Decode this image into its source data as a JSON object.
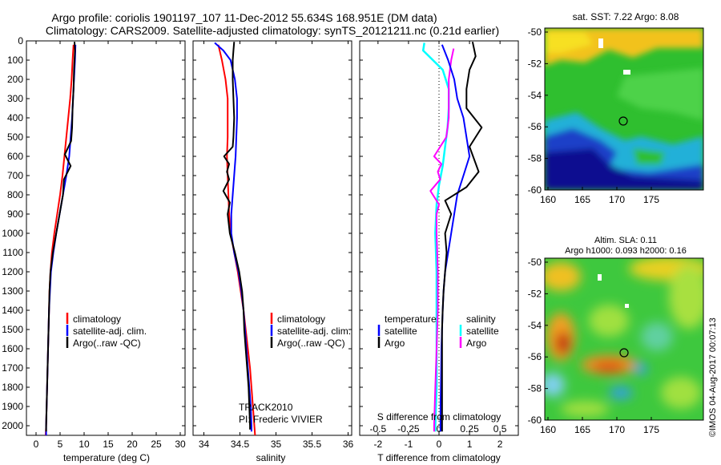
{
  "title": {
    "line1": "Argo profile: coriolis 1901197_107 11-Dec-2012 55.634S 168.951E (DM data)",
    "line2": "Climatology: CARS2009. Satellite-adjusted climatology: synTS_20121211.nc (0.21d earlier)"
  },
  "colors": {
    "climatology": "#ff0000",
    "satellite": "#0000ff",
    "argo": "#000000",
    "sal_satellite": "#00ffff",
    "sal_argo": "#ff00ff"
  },
  "depth_ticks": [
    0,
    100,
    200,
    300,
    400,
    500,
    600,
    700,
    800,
    900,
    1000,
    1100,
    1200,
    1300,
    1400,
    1500,
    1600,
    1700,
    1800,
    1900,
    2000
  ],
  "temp_panel": {
    "xlabel": "temperature (deg C)",
    "xticks": [
      "0",
      "5",
      "10",
      "15",
      "20",
      "25",
      "30"
    ],
    "legend": [
      "climatology",
      "satellite-adj. clim.",
      "Argo(..raw -QC)"
    ]
  },
  "sal_panel": {
    "xlabel": "salinity",
    "xticks": [
      "34",
      "34.5",
      "35",
      "35.5",
      "36"
    ],
    "legend": [
      "climatology",
      "satellite-adj. clim.",
      "Argo(..raw -QC)"
    ],
    "note1": "TRACK2010",
    "note2": "PI: Frederic VIVIER"
  },
  "diff_panel": {
    "xlabel": "T difference from climatology",
    "top_label": "S difference from climatology",
    "xticks": [
      "-2",
      "-1",
      "0",
      "1",
      "2"
    ],
    "sticks": [
      "-0.5",
      "-0.25",
      "0",
      "0.25",
      "0.5"
    ],
    "legend": {
      "temp_header": "temperature",
      "sal_header": "salinity",
      "t_sat": "satellite",
      "t_argo": "Argo",
      "s_sat": "satellite",
      "s_argo": "Argo"
    }
  },
  "map_top": {
    "title": "sat. SST: 7.22 Argo: 8.08",
    "yticks": [
      "-50",
      "-52",
      "-54",
      "-56",
      "-58",
      "-60"
    ],
    "xticks": [
      "160",
      "165",
      "170",
      "175"
    ]
  },
  "map_bottom": {
    "title1": "Altim. SLA: 0.11",
    "title2": "Argo h1000: 0.093 h2000: 0.16",
    "yticks": [
      "-50",
      "-52",
      "-54",
      "-56",
      "-58",
      "-60"
    ],
    "xticks": [
      "160",
      "165",
      "170",
      "175"
    ]
  },
  "watermark": "©IMOS 04-Aug-2017 00:07:13",
  "chart_data": {
    "type": "line",
    "y_axis": "depth",
    "ylim": [
      2050,
      0
    ],
    "temperature": {
      "xlim": [
        -2,
        31
      ],
      "climatology": [
        [
          7.8,
          20
        ],
        [
          7.6,
          100
        ],
        [
          7.4,
          200
        ],
        [
          7.1,
          300
        ],
        [
          6.7,
          400
        ],
        [
          6.3,
          500
        ],
        [
          5.9,
          600
        ],
        [
          5.5,
          700
        ],
        [
          5.0,
          800
        ],
        [
          4.4,
          900
        ],
        [
          3.8,
          1000
        ],
        [
          3.3,
          1100
        ],
        [
          3.0,
          1200
        ],
        [
          2.8,
          1300
        ],
        [
          2.7,
          1400
        ],
        [
          2.6,
          1500
        ],
        [
          2.5,
          1600
        ],
        [
          2.4,
          1700
        ],
        [
          2.3,
          1800
        ],
        [
          2.2,
          1900
        ],
        [
          2.1,
          2000
        ],
        [
          2.0,
          2050
        ]
      ],
      "satellite": [
        [
          8.2,
          20
        ],
        [
          8.1,
          100
        ],
        [
          7.9,
          200
        ],
        [
          7.7,
          300
        ],
        [
          7.5,
          400
        ],
        [
          7.2,
          500
        ],
        [
          6.9,
          600
        ],
        [
          6.3,
          700
        ],
        [
          5.6,
          800
        ],
        [
          4.9,
          900
        ],
        [
          4.2,
          1000
        ],
        [
          3.6,
          1100
        ],
        [
          3.1,
          1200
        ],
        [
          2.9,
          1300
        ],
        [
          2.7,
          1400
        ],
        [
          2.6,
          1500
        ],
        [
          2.5,
          1600
        ],
        [
          2.4,
          1700
        ],
        [
          2.3,
          1800
        ],
        [
          2.2,
          1900
        ],
        [
          2.1,
          2000
        ],
        [
          2.1,
          2050
        ]
      ],
      "argo": [
        [
          8.0,
          5
        ],
        [
          8.1,
          50
        ],
        [
          7.9,
          150
        ],
        [
          7.8,
          250
        ],
        [
          7.6,
          350
        ],
        [
          7.5,
          450
        ],
        [
          7.3,
          520
        ],
        [
          6.0,
          590
        ],
        [
          7.2,
          650
        ],
        [
          5.8,
          720
        ],
        [
          5.6,
          800
        ],
        [
          4.9,
          900
        ],
        [
          4.2,
          1000
        ],
        [
          3.5,
          1100
        ],
        [
          3.0,
          1200
        ],
        [
          2.8,
          1300
        ],
        [
          2.7,
          1400
        ],
        [
          2.6,
          1500
        ],
        [
          2.5,
          1600
        ],
        [
          2.4,
          1700
        ],
        [
          2.3,
          1800
        ],
        [
          2.2,
          1900
        ],
        [
          2.1,
          2000
        ],
        [
          2.1,
          2030
        ]
      ]
    },
    "salinity": {
      "xlim": [
        33.85,
        36.05
      ],
      "climatology": [
        [
          34.2,
          20
        ],
        [
          34.25,
          100
        ],
        [
          34.3,
          200
        ],
        [
          34.33,
          300
        ],
        [
          34.33,
          400
        ],
        [
          34.33,
          500
        ],
        [
          34.32,
          600
        ],
        [
          34.33,
          700
        ],
        [
          34.34,
          800
        ],
        [
          34.35,
          900
        ],
        [
          34.37,
          1000
        ],
        [
          34.42,
          1100
        ],
        [
          34.47,
          1200
        ],
        [
          34.51,
          1300
        ],
        [
          34.55,
          1400
        ],
        [
          34.58,
          1500
        ],
        [
          34.61,
          1600
        ],
        [
          34.64,
          1700
        ],
        [
          34.66,
          1800
        ],
        [
          34.68,
          1900
        ],
        [
          34.7,
          2000
        ],
        [
          34.71,
          2050
        ]
      ],
      "satellite": [
        [
          34.15,
          10
        ],
        [
          34.27,
          50
        ],
        [
          34.37,
          100
        ],
        [
          34.43,
          200
        ],
        [
          34.46,
          300
        ],
        [
          34.46,
          400
        ],
        [
          34.45,
          500
        ],
        [
          34.44,
          600
        ],
        [
          34.42,
          700
        ],
        [
          34.4,
          800
        ],
        [
          34.38,
          900
        ],
        [
          34.38,
          1000
        ],
        [
          34.42,
          1100
        ],
        [
          34.48,
          1200
        ],
        [
          34.52,
          1300
        ],
        [
          34.55,
          1400
        ],
        [
          34.57,
          1500
        ],
        [
          34.59,
          1600
        ],
        [
          34.61,
          1700
        ],
        [
          34.63,
          1800
        ],
        [
          34.65,
          1900
        ],
        [
          34.66,
          2000
        ],
        [
          34.66,
          2030
        ]
      ],
      "argo": [
        [
          34.42,
          5
        ],
        [
          34.41,
          50
        ],
        [
          34.4,
          100
        ],
        [
          34.4,
          200
        ],
        [
          34.41,
          300
        ],
        [
          34.42,
          400
        ],
        [
          34.41,
          500
        ],
        [
          34.4,
          550
        ],
        [
          34.28,
          600
        ],
        [
          34.35,
          640
        ],
        [
          34.32,
          680
        ],
        [
          34.35,
          720
        ],
        [
          34.27,
          780
        ],
        [
          34.36,
          840
        ],
        [
          34.33,
          900
        ],
        [
          34.36,
          1000
        ],
        [
          34.43,
          1100
        ],
        [
          34.49,
          1200
        ],
        [
          34.53,
          1300
        ],
        [
          34.55,
          1400
        ],
        [
          34.56,
          1500
        ],
        [
          34.58,
          1600
        ],
        [
          34.6,
          1700
        ],
        [
          34.62,
          1800
        ],
        [
          34.63,
          1900
        ],
        [
          34.64,
          2000
        ],
        [
          34.64,
          2020
        ]
      ]
    },
    "difference": {
      "t_xlim": [
        -2.6,
        2.6
      ],
      "s_xlim": [
        -0.65,
        0.65
      ],
      "t_satellite": [
        [
          0.1,
          20
        ],
        [
          0.3,
          100
        ],
        [
          0.5,
          200
        ],
        [
          0.6,
          300
        ],
        [
          0.8,
          400
        ],
        [
          0.9,
          500
        ],
        [
          1.0,
          600
        ],
        [
          0.8,
          700
        ],
        [
          0.6,
          800
        ],
        [
          0.5,
          900
        ],
        [
          0.4,
          1000
        ],
        [
          0.3,
          1100
        ],
        [
          0.2,
          1200
        ],
        [
          0.15,
          1300
        ],
        [
          0.12,
          1400
        ],
        [
          0.1,
          1500
        ],
        [
          0.08,
          1600
        ],
        [
          0.07,
          1700
        ],
        [
          0.06,
          1800
        ],
        [
          0.05,
          1900
        ],
        [
          0.05,
          2000
        ],
        [
          0.05,
          2030
        ]
      ],
      "t_argo": [
        [
          1.1,
          5
        ],
        [
          1.2,
          80
        ],
        [
          1.0,
          150
        ],
        [
          0.9,
          250
        ],
        [
          0.9,
          350
        ],
        [
          1.4,
          450
        ],
        [
          1.0,
          550
        ],
        [
          1.3,
          680
        ],
        [
          0.9,
          760
        ],
        [
          0.2,
          830
        ],
        [
          0.4,
          900
        ],
        [
          0.2,
          1000
        ],
        [
          0.25,
          1100
        ],
        [
          0.2,
          1200
        ],
        [
          0.15,
          1300
        ],
        [
          0.12,
          1400
        ],
        [
          0.1,
          1500
        ],
        [
          0.1,
          1600
        ],
        [
          0.1,
          1700
        ],
        [
          0.1,
          1800
        ],
        [
          0.1,
          1900
        ],
        [
          0.1,
          2000
        ],
        [
          0.1,
          2030
        ]
      ],
      "s_satellite": [
        [
          -0.12,
          10
        ],
        [
          -0.13,
          50
        ],
        [
          -0.05,
          100
        ],
        [
          0.03,
          150
        ],
        [
          0.08,
          250
        ],
        [
          0.08,
          350
        ],
        [
          0.07,
          450
        ],
        [
          0.05,
          550
        ],
        [
          0.03,
          650
        ],
        [
          0.0,
          750
        ],
        [
          -0.02,
          850
        ],
        [
          -0.03,
          1000
        ],
        [
          -0.02,
          1200
        ],
        [
          -0.02,
          1400
        ],
        [
          -0.02,
          1600
        ],
        [
          -0.02,
          1800
        ],
        [
          -0.03,
          2000
        ],
        [
          -0.03,
          2030
        ]
      ],
      "s_argo": [
        [
          0.12,
          40
        ],
        [
          0.1,
          100
        ],
        [
          0.08,
          200
        ],
        [
          0.08,
          300
        ],
        [
          0.08,
          400
        ],
        [
          0.06,
          500
        ],
        [
          -0.04,
          600
        ],
        [
          0.02,
          640
        ],
        [
          -0.01,
          680
        ],
        [
          0.01,
          720
        ],
        [
          -0.07,
          780
        ],
        [
          0.0,
          850
        ],
        [
          -0.02,
          900
        ],
        [
          -0.02,
          1000
        ],
        [
          -0.01,
          1200
        ],
        [
          -0.01,
          1400
        ],
        [
          -0.02,
          1600
        ],
        [
          -0.03,
          1800
        ],
        [
          -0.04,
          2000
        ],
        [
          -0.04,
          2030
        ]
      ]
    }
  }
}
